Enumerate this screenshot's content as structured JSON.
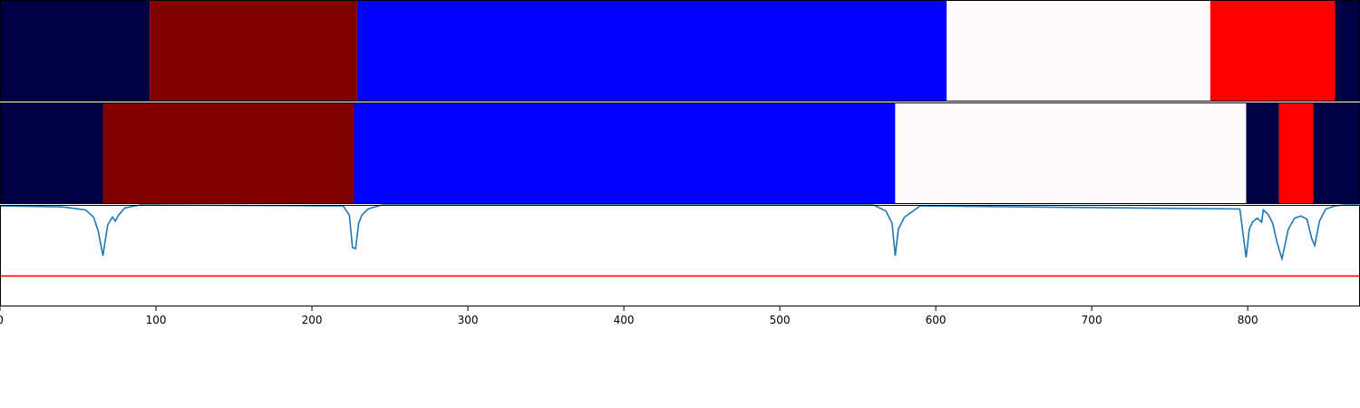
{
  "chart_data": [
    {
      "type": "bar",
      "panel": "top-segments",
      "xlim": [
        0,
        872
      ],
      "segments": [
        {
          "start": 0,
          "end": 96,
          "color": "#000044"
        },
        {
          "start": 96,
          "end": 229,
          "color": "#800000"
        },
        {
          "start": 229,
          "end": 607,
          "color": "#0000ff"
        },
        {
          "start": 607,
          "end": 776,
          "color": "#fffbfd"
        },
        {
          "start": 776,
          "end": 856,
          "color": "#ff0000"
        },
        {
          "start": 856,
          "end": 872,
          "color": "#000044"
        }
      ]
    },
    {
      "type": "bar",
      "panel": "middle-segments",
      "xlim": [
        0,
        872
      ],
      "segments": [
        {
          "start": 0,
          "end": 66,
          "color": "#000044"
        },
        {
          "start": 66,
          "end": 227,
          "color": "#800000"
        },
        {
          "start": 227,
          "end": 574,
          "color": "#0000ff"
        },
        {
          "start": 574,
          "end": 799,
          "color": "#fffbfd"
        },
        {
          "start": 799,
          "end": 820,
          "color": "#000044"
        },
        {
          "start": 820,
          "end": 842,
          "color": "#ff0000"
        },
        {
          "start": 842,
          "end": 872,
          "color": "#000044"
        }
      ]
    },
    {
      "type": "line",
      "panel": "bottom-signal",
      "xlim": [
        0,
        872
      ],
      "ylim": [
        0,
        1
      ],
      "threshold": 0.3,
      "line_color": "#1f77b4",
      "threshold_color": "#ff0000",
      "x": [
        0,
        40,
        55,
        60,
        63,
        66,
        69,
        72,
        74,
        76,
        80,
        90,
        220,
        224,
        226,
        228,
        230,
        232,
        236,
        245,
        560,
        568,
        572,
        574,
        576,
        580,
        590,
        795,
        799,
        801,
        803,
        806,
        809,
        810,
        813,
        816,
        819,
        822,
        826,
        830,
        834,
        838,
        841,
        843,
        846,
        850,
        856,
        862,
        872
      ],
      "y": [
        0.99,
        0.98,
        0.95,
        0.88,
        0.74,
        0.5,
        0.8,
        0.88,
        0.84,
        0.9,
        0.97,
        1.0,
        0.99,
        0.9,
        0.58,
        0.57,
        0.82,
        0.9,
        0.96,
        1.0,
        1.0,
        0.94,
        0.82,
        0.5,
        0.76,
        0.88,
        0.99,
        0.96,
        0.48,
        0.76,
        0.83,
        0.87,
        0.83,
        0.95,
        0.91,
        0.82,
        0.62,
        0.47,
        0.76,
        0.87,
        0.89,
        0.86,
        0.67,
        0.6,
        0.84,
        0.96,
        0.99,
        1.0,
        1.0
      ]
    }
  ],
  "axis": {
    "ticks": [
      "0",
      "100",
      "200",
      "300",
      "400",
      "500",
      "600",
      "700",
      "800"
    ]
  }
}
